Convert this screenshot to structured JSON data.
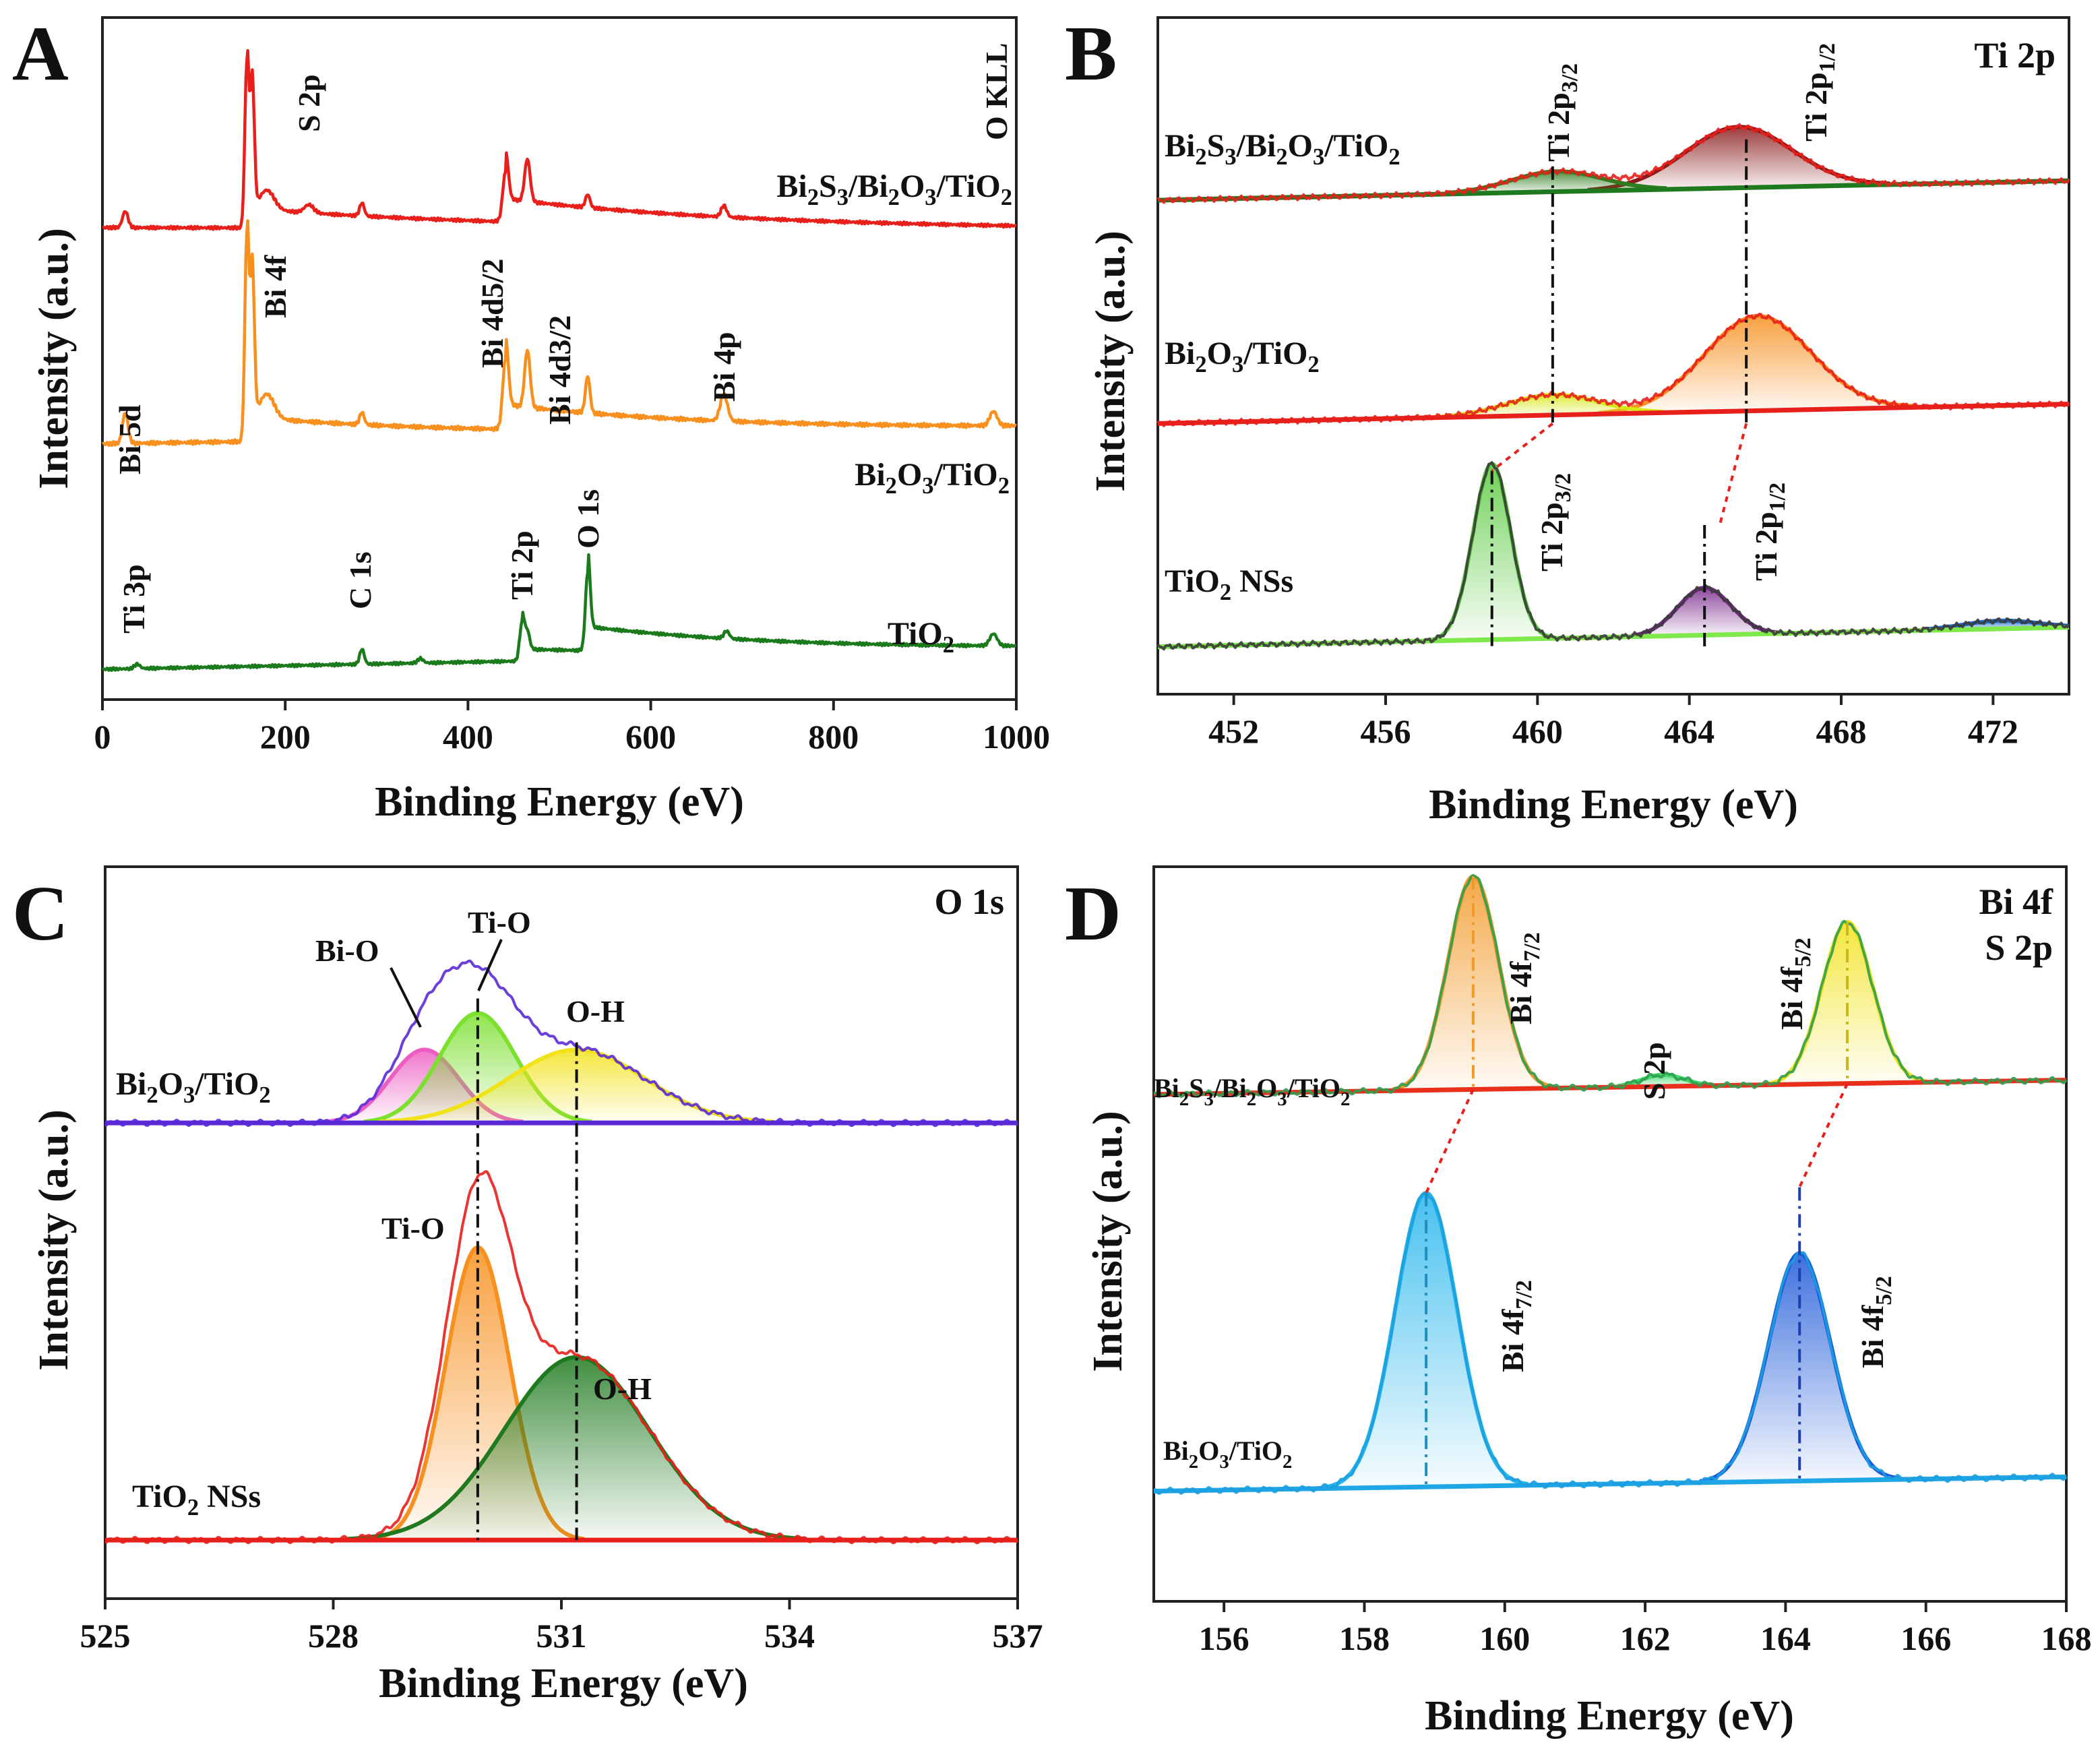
{
  "figure": {
    "background": "#ffffff"
  },
  "chart_data": [
    {
      "panel": "A",
      "type": "line",
      "title": "",
      "xlabel": "Binding Energy (eV)",
      "ylabel": "Intensity (a.u.)",
      "xlim": [
        0,
        1000
      ],
      "xticks": [
        0,
        200,
        400,
        600,
        800,
        1000
      ],
      "xtick_labels": [
        "0",
        "200",
        "400",
        "600",
        "800",
        "1000"
      ],
      "series": [
        {
          "name": "Bi2S3/Bi2O3/TiO2",
          "color": "#e8201c",
          "offset": 0.68,
          "scale": 0.24,
          "base": [
            [
              0,
              0.05
            ],
            [
              1000,
              0.04
            ]
          ],
          "peaks": [
            [
              25,
              0.1,
              3
            ],
            [
              158,
              1.0,
              2.2
            ],
            [
              164,
              0.8,
              2.2
            ],
            [
              180,
              0.12,
              8
            ],
            [
              226,
              0.05,
              5
            ],
            [
              284,
              0.08,
              2.5
            ],
            [
              441,
              0.3,
              3
            ],
            [
              465,
              0.26,
              3
            ],
            [
              531,
              0.08,
              2.5
            ],
            [
              680,
              0.07,
              3
            ]
          ],
          "steps": [
            [
              158,
              0.12
            ],
            [
              441,
              0.14
            ]
          ],
          "label": {
            "base": "Bi",
            "parts": [
              [
                "Bi",
                ""
              ],
              [
                "2",
                "sub"
              ],
              [
                "S",
                ""
              ],
              [
                "3",
                "sub"
              ],
              [
                "/Bi",
                ""
              ],
              [
                "2",
                "sub"
              ],
              [
                "O",
                ""
              ],
              [
                "3",
                "sub"
              ],
              [
                "/TiO",
                ""
              ],
              [
                "2",
                "sub"
              ]
            ]
          }
        },
        {
          "name": "Bi2O3/TiO2",
          "color": "#f7901e",
          "offset": 0.36,
          "scale": 0.3,
          "base": [
            [
              0,
              0.05
            ],
            [
              1000,
              0.12
            ]
          ],
          "peaks": [
            [
              25,
              0.15,
              3
            ],
            [
              158,
              1.0,
              2.2
            ],
            [
              164,
              0.75,
              2.2
            ],
            [
              180,
              0.12,
              8
            ],
            [
              284,
              0.06,
              2.5
            ],
            [
              441,
              0.34,
              3
            ],
            [
              465,
              0.28,
              3
            ],
            [
              531,
              0.18,
              2.5
            ],
            [
              680,
              0.13,
              4
            ],
            [
              975,
              0.07,
              4
            ]
          ],
          "steps": [
            [
              158,
              0.12
            ],
            [
              441,
              0.12
            ]
          ],
          "label": {
            "parts": [
              [
                "Bi",
                ""
              ],
              [
                "2",
                "sub"
              ],
              [
                "O",
                ""
              ],
              [
                "3",
                "sub"
              ],
              [
                "/TiO",
                ""
              ],
              [
                "2",
                "sub"
              ]
            ]
          }
        },
        {
          "name": "TiO2",
          "color": "#1b7a1b",
          "offset": 0.04,
          "scale": 0.22,
          "base": [
            [
              0,
              0.02
            ],
            [
              1000,
              0.14
            ]
          ],
          "peaks": [
            [
              38,
              0.03,
              3
            ],
            [
              284,
              0.1,
              2.5
            ],
            [
              348,
              0.03,
              3
            ],
            [
              459,
              0.25,
              2.5
            ],
            [
              465,
              0.12,
              2.5
            ],
            [
              531,
              0.52,
              2.5
            ],
            [
              683,
              0.05,
              3
            ],
            [
              975,
              0.08,
              4
            ]
          ],
          "steps": [
            [
              459,
              0.08
            ],
            [
              531,
              0.16
            ]
          ],
          "label": {
            "parts": [
              [
                "TiO",
                ""
              ],
              [
                "2",
                "sub"
              ]
            ]
          }
        }
      ],
      "annotations": [
        "S 2p",
        "O KLL",
        "Bi 4f",
        "Bi 5d",
        "Bi 4d5/2",
        "Bi 4d3/2",
        "Bi 4p",
        "Ti 3p",
        "C 1s",
        "Ti 2p",
        "O 1s"
      ]
    },
    {
      "panel": "B",
      "type": "line",
      "corner_label": "Ti 2p",
      "xlabel": "Binding Energy (eV)",
      "ylabel": "Intensity (a.u.)",
      "xlim": [
        450,
        474
      ],
      "xticks": [
        452,
        456,
        460,
        464,
        468,
        472
      ],
      "xtick_labels": [
        "452",
        "456",
        "460",
        "464",
        "468",
        "472"
      ],
      "series": [
        {
          "name": "Bi2S3/Bi2O3/TiO2",
          "offset": 0.73,
          "label": {
            "parts": [
              [
                "Bi",
                ""
              ],
              [
                "2",
                "sub"
              ],
              [
                "S",
                ""
              ],
              [
                "3",
                "sub"
              ],
              [
                "/Bi",
                ""
              ],
              [
                "2",
                "sub"
              ],
              [
                "O",
                ""
              ],
              [
                "3",
                "sub"
              ],
              [
                "/TiO",
                ""
              ],
              [
                "2",
                "sub"
              ]
            ]
          },
          "components": [
            {
              "center": 465.3,
              "height": 0.09,
              "width": 1.4,
              "color": "#8b1a1a"
            },
            {
              "center": 460.5,
              "height": 0.03,
              "width": 1.2,
              "color": "#2f7d1e"
            }
          ],
          "envelope_color": "#e8201c",
          "background_color": "#1f7a1f"
        },
        {
          "name": "Bi2O3/TiO2",
          "offset": 0.4,
          "label": {
            "parts": [
              [
                "Bi",
                ""
              ],
              [
                "2",
                "sub"
              ],
              [
                "O",
                ""
              ],
              [
                "3",
                "sub"
              ],
              [
                "/TiO",
                ""
              ],
              [
                "2",
                "sub"
              ]
            ]
          },
          "components": [
            {
              "center": 465.8,
              "height": 0.14,
              "width": 1.4,
              "color": "#f7901e"
            },
            {
              "center": 460.4,
              "height": 0.03,
              "width": 1.2,
              "color": "#d7e81a"
            }
          ],
          "envelope_color": "#e8201c",
          "background_color": "#e8201c"
        },
        {
          "name": "TiO2 NSs",
          "offset": 0.07,
          "label": {
            "parts": [
              [
                "TiO",
                ""
              ],
              [
                "2",
                "sub"
              ],
              [
                " NSs",
                ""
              ]
            ]
          },
          "components": [
            {
              "center": 458.8,
              "height": 0.26,
              "width": 0.5,
              "color": "#55c93a"
            },
            {
              "center": 464.4,
              "height": 0.07,
              "width": 0.7,
              "color": "#7b2a8c"
            },
            {
              "center": 472.2,
              "height": 0.012,
              "width": 1.0,
              "color": "#1f6fd1"
            }
          ],
          "envelope_color": "#3a3a3a",
          "background_color": "#7fe84a"
        }
      ],
      "reference_lines": [
        460.4,
        465.5,
        458.8,
        464.4
      ]
    },
    {
      "panel": "C",
      "type": "line",
      "corner_label": "O 1s",
      "xlabel": "Binding Energy (eV)",
      "ylabel": "Intensity (a.u.)",
      "xlim": [
        525,
        537
      ],
      "xticks": [
        525,
        528,
        531,
        534,
        537
      ],
      "xtick_labels": [
        "525",
        "528",
        "531",
        "534",
        "537"
      ],
      "series": [
        {
          "name": "Bi2O3/TiO2",
          "offset": 0.65,
          "label": {
            "parts": [
              [
                "Bi",
                ""
              ],
              [
                "2",
                "sub"
              ],
              [
                "O",
                ""
              ],
              [
                "3",
                "sub"
              ],
              [
                "/TiO",
                ""
              ],
              [
                "2",
                "sub"
              ]
            ]
          },
          "components": [
            {
              "name": "Bi-O",
              "center": 529.2,
              "height": 0.1,
              "width": 0.45,
              "color": "#ec5ec4"
            },
            {
              "name": "Ti-O",
              "center": 529.9,
              "height": 0.15,
              "width": 0.5,
              "color": "#7be02e"
            },
            {
              "name": "O-H",
              "center": 531.2,
              "height": 0.1,
              "width": 0.9,
              "color": "#f2e21a"
            }
          ],
          "envelope_color": "#5b2ad8"
        },
        {
          "name": "TiO2 NSs",
          "offset": 0.08,
          "label": {
            "parts": [
              [
                "TiO",
                ""
              ],
              [
                "2",
                "sub"
              ],
              [
                " NSs",
                ""
              ]
            ]
          },
          "components": [
            {
              "name": "Ti-O",
              "center": 529.9,
              "height": 0.4,
              "width": 0.42,
              "color": "#f7901e"
            },
            {
              "name": "O-H",
              "center": 531.2,
              "height": 0.25,
              "width": 0.95,
              "color": "#1f7a1f"
            }
          ],
          "envelope_color": "#e8201c"
        }
      ],
      "reference_lines": [
        529.9,
        531.2
      ],
      "annotations": [
        "Bi-O",
        "Ti-O",
        "O-H",
        "Ti-O",
        "O-H"
      ]
    },
    {
      "panel": "D",
      "type": "line",
      "corner_label": [
        "Bi 4f",
        "S 2p"
      ],
      "xlabel": "Binding Energy (eV)",
      "ylabel": "Intensity (a.u.)",
      "xlim": [
        155,
        168
      ],
      "xticks": [
        156,
        158,
        160,
        162,
        164,
        166,
        168
      ],
      "xtick_labels": [
        "156",
        "158",
        "160",
        "162",
        "164",
        "166",
        "168"
      ],
      "series": [
        {
          "name": "Bi2S3/Bi2O3/TiO2",
          "offset": 0.69,
          "label": {
            "parts": [
              [
                "Bi",
                ""
              ],
              [
                "2",
                "sub"
              ],
              [
                "S",
                ""
              ],
              [
                "3",
                "sub"
              ],
              [
                "/Bi",
                ""
              ],
              [
                "2",
                "sub"
              ],
              [
                "O",
                ""
              ],
              [
                "3",
                "sub"
              ],
              [
                "/TiO",
                ""
              ],
              [
                "2",
                "sub"
              ]
            ]
          },
          "components": [
            {
              "name": "Bi 4f7/2",
              "center": 159.55,
              "height": 0.29,
              "width": 0.36,
              "color": "#f29a28"
            },
            {
              "name": "S 2p",
              "center": 162.25,
              "height": 0.016,
              "width": 0.3,
              "color": "#43d86c"
            },
            {
              "name": "Bi 4f5/2",
              "center": 164.88,
              "height": 0.22,
              "width": 0.36,
              "color": "#f2e21a"
            }
          ],
          "envelope_color": "#2f9e4f",
          "background_color": "#e8301c"
        },
        {
          "name": "Bi2O3/TiO2",
          "offset": 0.15,
          "label": {
            "parts": [
              [
                "Bi",
                ""
              ],
              [
                "2",
                "sub"
              ],
              [
                "O",
                ""
              ],
              [
                "3",
                "sub"
              ],
              [
                "/TiO",
                ""
              ],
              [
                "2",
                "sub"
              ]
            ]
          },
          "components": [
            {
              "name": "Bi 4f7/2",
              "center": 158.88,
              "height": 0.4,
              "width": 0.44,
              "color": "#27b6ec"
            },
            {
              "name": "Bi 4f5/2",
              "center": 164.2,
              "height": 0.31,
              "width": 0.44,
              "color": "#1c58d8"
            }
          ],
          "envelope_color": "#1c9ee0",
          "background_color": "#1ea6e6"
        }
      ],
      "annotations": [
        "Bi 4f7/2",
        "S 2p",
        "Bi 4f5/2",
        "Bi 4f7/2",
        "Bi 4f5/2"
      ]
    }
  ],
  "text": {
    "panel_a": "A",
    "panel_b": "B",
    "panel_c": "C",
    "panel_d": "D",
    "xlabel": "Binding Energy (eV)",
    "ylabel": "Intensity (a.u.)",
    "a_s2p": "S 2p",
    "a_okll": "O KLL",
    "a_bi4f": "Bi 4f",
    "a_bi5d": "Bi 5d",
    "a_bi4d52": "Bi 4d5/2",
    "a_bi4d32": "Bi 4d3/2",
    "a_bi4p": "Bi 4p",
    "a_ti3p": "Ti 3p",
    "a_c1s": "C 1s",
    "a_ti2p": "Ti 2p",
    "a_o1s": "O 1s",
    "b_corner": "Ti 2p",
    "b_ti2p": "Ti 2p",
    "b_sub32": "3/2",
    "b_sub12": "1/2",
    "c_corner": "O 1s",
    "c_bio": "Bi-O",
    "c_tio": "Ti-O",
    "c_oh": "O-H",
    "d_corner1": "Bi 4f",
    "d_corner2": "S 2p",
    "d_bi4f": "Bi 4f",
    "d_s2p": "S 2p",
    "d_sub72": "7/2",
    "d_sub52": "5/2"
  }
}
